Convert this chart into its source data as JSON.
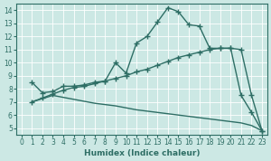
{
  "xlabel": "Humidex (Indice chaleur)",
  "bg_color": "#cce8e4",
  "line_color": "#2e6e65",
  "grid_color": "#ffffff",
  "xlim": [
    -0.5,
    23.5
  ],
  "ylim": [
    4.5,
    14.5
  ],
  "xticks": [
    0,
    1,
    2,
    3,
    4,
    5,
    6,
    7,
    8,
    9,
    10,
    11,
    12,
    13,
    14,
    15,
    16,
    17,
    18,
    19,
    20,
    21,
    22,
    23
  ],
  "yticks": [
    5,
    6,
    7,
    8,
    9,
    10,
    11,
    12,
    13,
    14
  ],
  "curve_upper_x": [
    1,
    2,
    3,
    4,
    5,
    6,
    7,
    8,
    9,
    10,
    11,
    12,
    13,
    14,
    15,
    16,
    17,
    18,
    19,
    20,
    21,
    22,
    23
  ],
  "curve_upper_y": [
    8.5,
    7.7,
    7.8,
    8.2,
    8.2,
    8.3,
    8.5,
    8.6,
    10.0,
    9.2,
    11.5,
    12.0,
    13.1,
    14.2,
    13.9,
    12.9,
    12.8,
    11.1,
    11.1,
    11.1,
    7.5,
    6.2,
    4.8
  ],
  "curve_mid_x": [
    1,
    2,
    3,
    4,
    5,
    6,
    7,
    8,
    9,
    10,
    11,
    12,
    13,
    14,
    15,
    16,
    17,
    18,
    19,
    20,
    21,
    22,
    23
  ],
  "curve_mid_y": [
    7.0,
    7.3,
    7.6,
    7.9,
    8.1,
    8.2,
    8.4,
    8.6,
    8.8,
    9.0,
    9.3,
    9.5,
    9.8,
    10.1,
    10.4,
    10.6,
    10.8,
    11.0,
    11.1,
    11.1,
    11.0,
    7.5,
    4.8
  ],
  "curve_low_x": [
    1,
    3,
    5,
    7,
    9,
    11,
    13,
    15,
    17,
    19,
    21,
    22,
    23
  ],
  "curve_low_y": [
    7.0,
    7.5,
    7.2,
    6.9,
    6.7,
    6.4,
    6.2,
    6.0,
    5.8,
    5.6,
    5.4,
    5.2,
    4.8
  ]
}
